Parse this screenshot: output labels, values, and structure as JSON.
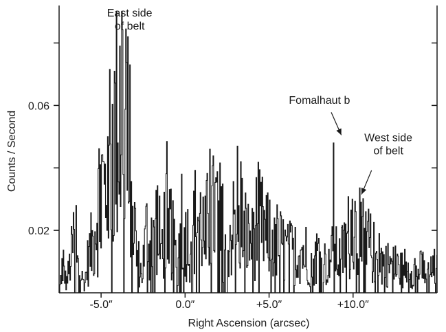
{
  "chart_data": {
    "type": "line",
    "title": "",
    "xlabel": "Right Ascension (arcsec)",
    "ylabel": "Counts / Second",
    "xlim": [
      -7.5,
      15.0
    ],
    "ylim": [
      0.0,
      0.092
    ],
    "x_ticks": [
      {
        "value": -5.0,
        "label": "-5.0″"
      },
      {
        "value": 0.0,
        "label": "0.0″"
      },
      {
        "value": 5.0,
        "label": "+5.0″"
      },
      {
        "value": 10.0,
        "label": "+10.0″"
      }
    ],
    "y_ticks": [
      {
        "value": 0.02,
        "label": "0.02"
      },
      {
        "value": 0.06,
        "label": "0.06"
      }
    ],
    "y_minor_ticks": [
      0.04,
      0.08
    ],
    "grid": false,
    "line_color": "#1a1a1a",
    "series": [
      {
        "anchors": [
          [
            -7.5,
            0.0
          ],
          [
            -7.3,
            0.012
          ],
          [
            -7.1,
            0.003
          ],
          [
            -6.9,
            0.009
          ],
          [
            -6.7,
            0.016
          ],
          [
            -6.55,
            0.026
          ],
          [
            -6.4,
            0.015
          ],
          [
            -6.2,
            0.006
          ],
          [
            -6.0,
            0.003
          ],
          [
            -5.8,
            0.012
          ],
          [
            -5.5,
            0.018
          ],
          [
            -5.2,
            0.032
          ],
          [
            -5.0,
            0.04
          ],
          [
            -4.8,
            0.034
          ],
          [
            -4.6,
            0.048
          ],
          [
            -4.4,
            0.058
          ],
          [
            -4.2,
            0.054
          ],
          [
            -4.0,
            0.072
          ],
          [
            -3.85,
            0.078
          ],
          [
            -3.7,
            0.068
          ],
          [
            -3.55,
            0.07
          ],
          [
            -3.4,
            0.078
          ],
          [
            -3.25,
            0.052
          ],
          [
            -3.1,
            0.03
          ],
          [
            -2.9,
            0.014
          ],
          [
            -2.6,
            0.006
          ],
          [
            -2.3,
            0.022
          ],
          [
            -2.0,
            0.012
          ],
          [
            -1.7,
            0.027
          ],
          [
            -1.4,
            0.016
          ],
          [
            -1.1,
            0.03
          ],
          [
            -0.8,
            0.02
          ],
          [
            -0.5,
            0.01
          ],
          [
            -0.2,
            0.027
          ],
          [
            0.2,
            0.018
          ],
          [
            0.7,
            0.028
          ],
          [
            1.1,
            0.022
          ],
          [
            1.5,
            0.026
          ],
          [
            1.9,
            0.03
          ],
          [
            2.4,
            0.018
          ],
          [
            2.9,
            0.024
          ],
          [
            3.3,
            0.026
          ],
          [
            3.8,
            0.018
          ],
          [
            4.3,
            0.026
          ],
          [
            4.9,
            0.02
          ],
          [
            5.5,
            0.018
          ],
          [
            6.1,
            0.014
          ],
          [
            6.8,
            0.016
          ],
          [
            7.4,
            0.012
          ],
          [
            8.0,
            0.014
          ],
          [
            8.4,
            0.01
          ],
          [
            8.8,
            0.014
          ],
          [
            9.2,
            0.012
          ],
          [
            9.6,
            0.018
          ],
          [
            9.9,
            0.024
          ],
          [
            10.3,
            0.022
          ],
          [
            10.6,
            0.024
          ],
          [
            11.0,
            0.016
          ],
          [
            11.5,
            0.012
          ],
          [
            12.2,
            0.01
          ],
          [
            13.0,
            0.008
          ],
          [
            13.8,
            0.009
          ],
          [
            14.5,
            0.007
          ],
          [
            15.0,
            0.008
          ]
        ],
        "spikes": [
          [
            -7.35,
            0.011
          ],
          [
            -6.5,
            0.028
          ],
          [
            -5.05,
            0.041
          ],
          [
            -4.62,
            0.05
          ],
          [
            -3.88,
            0.079
          ],
          [
            -3.42,
            0.082
          ],
          [
            -3.3,
            0.073
          ],
          [
            -2.02,
            0.024
          ],
          [
            -1.55,
            0.031
          ],
          [
            -1.02,
            0.027
          ],
          [
            -0.2,
            0.038
          ],
          [
            1.2,
            0.031
          ],
          [
            1.45,
            0.046
          ],
          [
            2.15,
            0.034
          ],
          [
            3.1,
            0.047
          ],
          [
            3.3,
            0.042
          ],
          [
            4.0,
            0.027
          ],
          [
            4.9,
            0.032
          ],
          [
            5.3,
            0.024
          ],
          [
            6.55,
            0.021
          ],
          [
            7.2,
            0.021
          ],
          [
            8.55,
            0.014
          ],
          [
            8.82,
            0.048
          ],
          [
            9.55,
            0.022
          ],
          [
            9.95,
            0.03
          ],
          [
            10.45,
            0.029
          ],
          [
            10.75,
            0.026
          ],
          [
            11.55,
            0.019
          ],
          [
            12.5,
            0.015
          ],
          [
            13.05,
            0.014
          ],
          [
            14.15,
            0.013
          ],
          [
            14.8,
            0.014
          ]
        ]
      }
    ],
    "annotations": [
      {
        "lines": [
          "East side",
          "of belt"
        ],
        "text_x": -3.3,
        "text_y": 0.0885,
        "arrow": null
      },
      {
        "lines": [
          "Fomalhaut b"
        ],
        "text_x": 8.0,
        "text_y": 0.0605,
        "arrow": {
          "from": [
            8.7,
            0.0578
          ],
          "to": [
            9.3,
            0.0505
          ]
        }
      },
      {
        "lines": [
          "West side",
          "of belt"
        ],
        "text_x": 12.1,
        "text_y": 0.0485,
        "arrow": {
          "from": [
            11.1,
            0.0392
          ],
          "to": [
            10.5,
            0.0315
          ]
        }
      }
    ]
  }
}
